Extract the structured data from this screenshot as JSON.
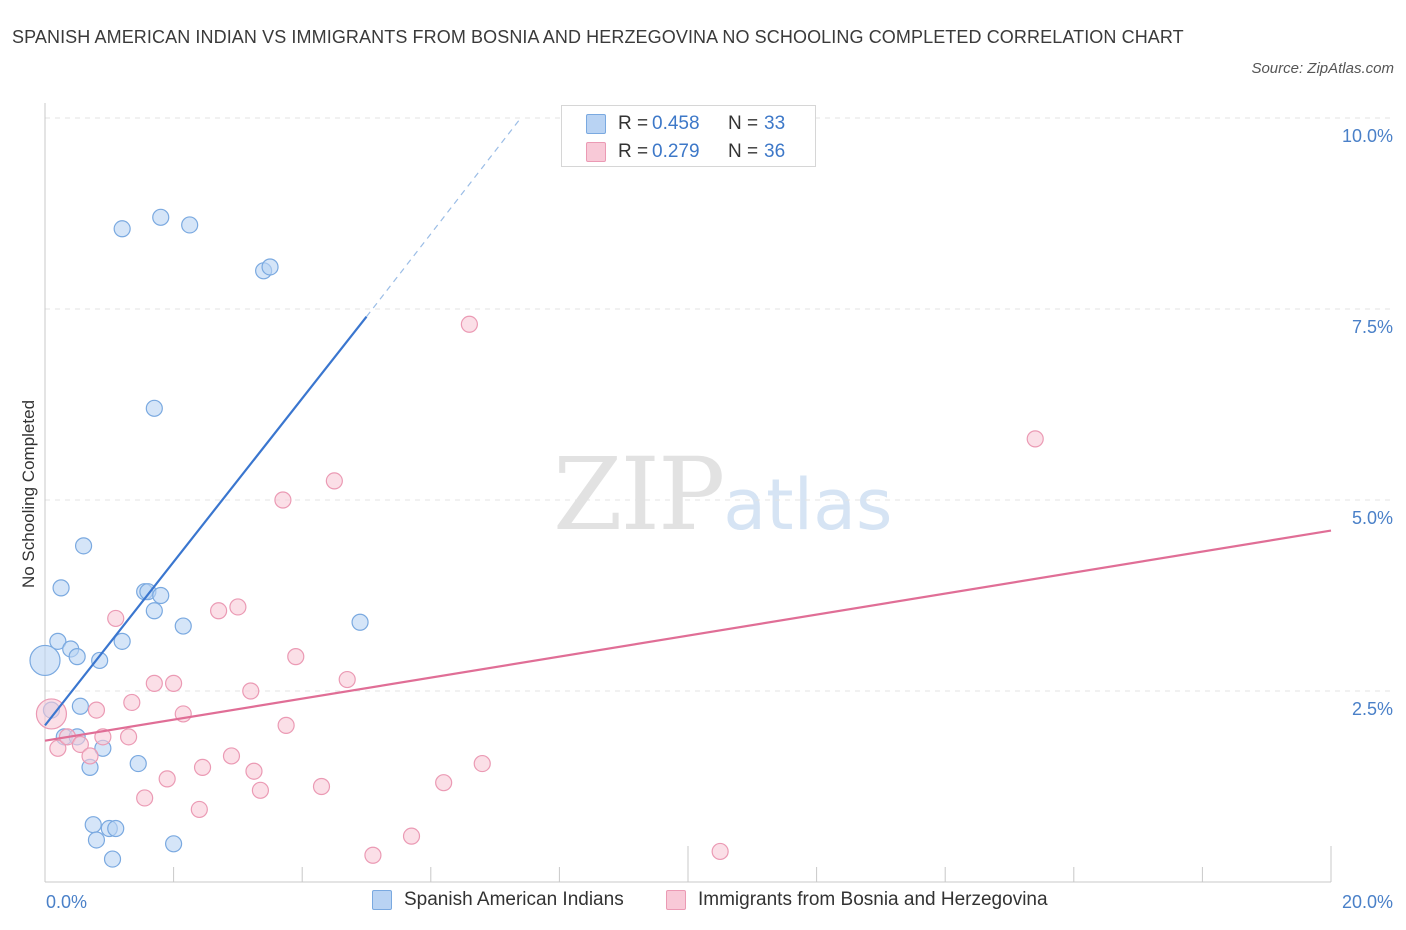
{
  "header": {
    "title": "SPANISH AMERICAN INDIAN VS IMMIGRANTS FROM BOSNIA AND HERZEGOVINA NO SCHOOLING COMPLETED CORRELATION CHART",
    "source": "Source: ZipAtlas.com"
  },
  "watermark": {
    "zip": "ZIP",
    "atlas": "atlas"
  },
  "legend": {
    "r_label": "R =",
    "n_label": "N =",
    "rows": [
      {
        "r": "0.458",
        "n": "33"
      },
      {
        "r": "0.279",
        "n": "36"
      }
    ]
  },
  "colors": {
    "blue_fill": "#b9d3f3",
    "blue_stroke": "#7aa9e0",
    "blue_line": "#3a76cf",
    "pink_fill": "#f8c9d7",
    "pink_stroke": "#eb9ab4",
    "pink_line": "#e06e96"
  },
  "chart_data": {
    "type": "scatter",
    "title": "SPANISH AMERICAN INDIAN VS IMMIGRANTS FROM BOSNIA AND HERZEGOVINA NO SCHOOLING COMPLETED CORRELATION CHART",
    "xlabel": "",
    "ylabel": "No Schooling Completed",
    "xlim": [
      0,
      20
    ],
    "ylim": [
      0,
      10
    ],
    "x_tick_labels": [
      "0.0%",
      "20.0%"
    ],
    "y_ticks": [
      2.5,
      5.0,
      7.5,
      10.0
    ],
    "y_tick_labels": [
      "2.5%",
      "5.0%",
      "7.5%",
      "10.0%"
    ],
    "grid": true,
    "legend_position": "top-center",
    "series": [
      {
        "name": "Spanish American Indians",
        "r": 0.458,
        "n": 33,
        "trend": {
          "x": [
            0.0,
            5.0
          ],
          "y": [
            2.05,
            7.4
          ],
          "dashed_extension_to": [
            7.4,
            10.0
          ]
        },
        "points": [
          [
            0.0,
            2.9
          ],
          [
            0.1,
            2.25
          ],
          [
            0.2,
            3.15
          ],
          [
            0.25,
            3.85
          ],
          [
            0.3,
            1.9
          ],
          [
            0.4,
            3.05
          ],
          [
            0.5,
            2.95
          ],
          [
            0.5,
            1.9
          ],
          [
            0.55,
            2.3
          ],
          [
            0.6,
            4.4
          ],
          [
            0.7,
            1.5
          ],
          [
            0.75,
            0.75
          ],
          [
            0.8,
            0.55
          ],
          [
            0.85,
            2.9
          ],
          [
            0.9,
            1.75
          ],
          [
            1.0,
            0.7
          ],
          [
            1.05,
            0.3
          ],
          [
            1.1,
            0.7
          ],
          [
            1.2,
            3.15
          ],
          [
            1.2,
            8.55
          ],
          [
            1.45,
            1.55
          ],
          [
            1.55,
            3.8
          ],
          [
            1.6,
            3.8
          ],
          [
            1.7,
            3.55
          ],
          [
            1.7,
            6.2
          ],
          [
            1.8,
            8.7
          ],
          [
            1.8,
            3.75
          ],
          [
            2.0,
            0.5
          ],
          [
            2.15,
            3.35
          ],
          [
            2.25,
            8.6
          ],
          [
            3.4,
            8.0
          ],
          [
            3.5,
            8.05
          ],
          [
            4.9,
            3.4
          ]
        ]
      },
      {
        "name": "Immigrants from Bosnia and Herzegovina",
        "r": 0.279,
        "n": 36,
        "trend": {
          "x": [
            0.0,
            20.0
          ],
          "y": [
            1.85,
            4.6
          ]
        },
        "points": [
          [
            0.1,
            2.2
          ],
          [
            0.2,
            1.75
          ],
          [
            0.35,
            1.9
          ],
          [
            0.55,
            1.8
          ],
          [
            0.7,
            1.65
          ],
          [
            0.8,
            2.25
          ],
          [
            0.9,
            1.9
          ],
          [
            1.1,
            3.45
          ],
          [
            1.3,
            1.9
          ],
          [
            1.35,
            2.35
          ],
          [
            1.55,
            1.1
          ],
          [
            1.7,
            2.6
          ],
          [
            1.9,
            1.35
          ],
          [
            2.0,
            2.6
          ],
          [
            2.15,
            2.2
          ],
          [
            2.4,
            0.95
          ],
          [
            2.45,
            1.5
          ],
          [
            2.7,
            3.55
          ],
          [
            2.9,
            1.65
          ],
          [
            3.0,
            3.6
          ],
          [
            3.2,
            2.5
          ],
          [
            3.25,
            1.45
          ],
          [
            3.35,
            1.2
          ],
          [
            3.7,
            5.0
          ],
          [
            3.75,
            2.05
          ],
          [
            3.9,
            2.95
          ],
          [
            4.3,
            1.25
          ],
          [
            4.5,
            5.25
          ],
          [
            4.7,
            2.65
          ],
          [
            5.1,
            0.35
          ],
          [
            5.7,
            0.6
          ],
          [
            6.2,
            1.3
          ],
          [
            6.6,
            7.3
          ],
          [
            6.8,
            1.55
          ],
          [
            10.5,
            0.4
          ],
          [
            15.4,
            5.8
          ]
        ]
      }
    ]
  },
  "bottom_legend": [
    "Spanish American Indians",
    "Immigrants from Bosnia and Herzegovina"
  ]
}
